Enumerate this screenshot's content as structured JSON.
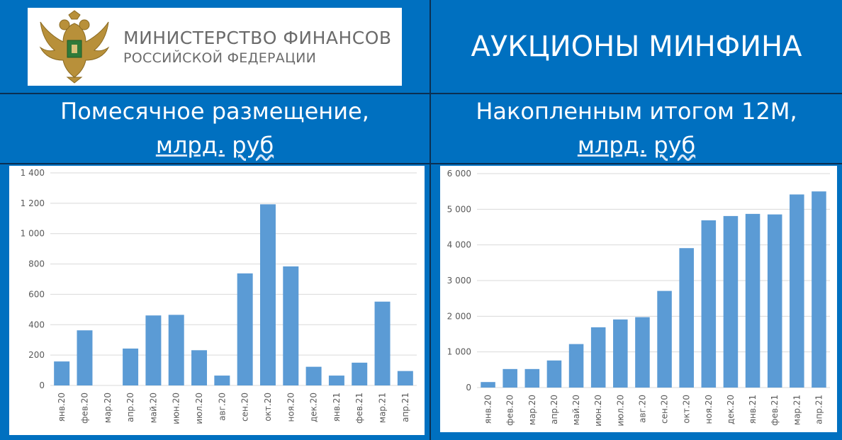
{
  "header": {
    "logo_line1": "МИНИСТЕРСТВО ФИНАНСОВ",
    "logo_line2": "РОССИЙСКОЙ ФЕДЕРАЦИИ",
    "title": "АУКЦИОНЫ МИНФИНА"
  },
  "subtitles": {
    "left_line1": "Помесячное размещение,",
    "left_unit1": "млрд.",
    "left_unit2": "руб",
    "right_line1": "Накопленным итогом 12М,",
    "right_unit1": "млрд.",
    "right_unit2": "руб"
  },
  "colors": {
    "background": "#0070C0",
    "bar": "#5B9BD5",
    "grid": "#D9D9D9",
    "axis_text": "#595959"
  },
  "chart_data": [
    {
      "type": "bar",
      "categories": [
        "янв.20",
        "фев.20",
        "мар.20",
        "апр.20",
        "май.20",
        "июн.20",
        "июл.20",
        "авг.20",
        "сен.20",
        "окт.20",
        "ноя.20",
        "дек.20",
        "янв.21",
        "фев.21",
        "мар.21",
        "апр.21"
      ],
      "values": [
        158,
        363,
        0,
        243,
        461,
        465,
        232,
        65,
        738,
        1193,
        784,
        123,
        65,
        150,
        552,
        95
      ],
      "yticks": [
        "0",
        "200",
        "400",
        "600",
        "800",
        "1 000",
        "1 200",
        "1 400"
      ],
      "ylim": [
        0,
        1400
      ],
      "grid": true
    },
    {
      "type": "bar",
      "categories": [
        "янв.20",
        "фев.20",
        "мар.20",
        "апр.20",
        "май.20",
        "июн.20",
        "июл.20",
        "авг.20",
        "сен.20",
        "окт.20",
        "ноя.20",
        "дек.20",
        "янв.21",
        "фев.21",
        "мар.21",
        "апр.21"
      ],
      "values": [
        155,
        520,
        520,
        760,
        1220,
        1690,
        1910,
        1975,
        2710,
        3910,
        4690,
        4810,
        4870,
        4855,
        5415,
        5500
      ],
      "yticks": [
        "0",
        "1 000",
        "2 000",
        "3 000",
        "4 000",
        "5 000",
        "6 000"
      ],
      "ylim": [
        0,
        6000
      ],
      "grid": true
    }
  ]
}
